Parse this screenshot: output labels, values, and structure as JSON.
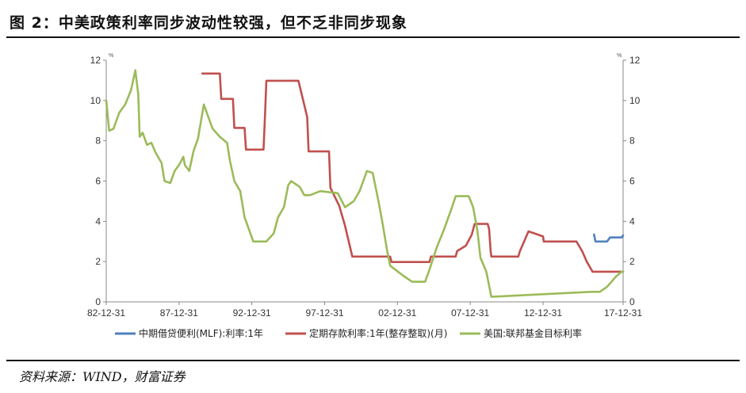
{
  "figure": {
    "title": "图 2：中美政策利率同步波动性较强，但不乏非同步现象",
    "source": "资料来源：WIND，财富证券"
  },
  "chart_data": {
    "type": "line",
    "title": "",
    "xlabel": "",
    "ylabel_left": "%",
    "ylabel_right": "%",
    "x_ticks": [
      "82-12-31",
      "87-12-31",
      "92-12-31",
      "97-12-31",
      "02-12-31",
      "07-12-31",
      "12-12-31",
      "17-12-31"
    ],
    "y_ticks": [
      "0",
      "2",
      "4",
      "6",
      "8",
      "10",
      "12"
    ],
    "ylim": [
      0,
      12
    ],
    "xlim": [
      1982.5,
      2018.0
    ],
    "legend_position": "bottom",
    "colors": {
      "mlf": "#4f81bd",
      "deposit": "#c0504d",
      "fed": "#9bbb59"
    },
    "series": [
      {
        "name": "中期借贷便利(MLF):利率:1年",
        "key": "mlf",
        "points": [
          [
            2016.0,
            3.35
          ],
          [
            2016.1,
            3.0
          ],
          [
            2016.9,
            3.0
          ],
          [
            2017.0,
            3.1
          ],
          [
            2017.1,
            3.2
          ],
          [
            2017.9,
            3.2
          ],
          [
            2018.0,
            3.3
          ]
        ]
      },
      {
        "name": "定期存款利率:1年(整存整取)(月)",
        "key": "deposit",
        "points": [
          [
            1989.1,
            11.34
          ],
          [
            1990.3,
            11.34
          ],
          [
            1990.4,
            10.08
          ],
          [
            1991.2,
            10.08
          ],
          [
            1991.3,
            8.64
          ],
          [
            1992.0,
            8.64
          ],
          [
            1992.1,
            7.56
          ],
          [
            1993.3,
            7.56
          ],
          [
            1993.4,
            9.18
          ],
          [
            1993.5,
            10.98
          ],
          [
            1995.7,
            10.98
          ],
          [
            1996.3,
            9.18
          ],
          [
            1996.4,
            7.47
          ],
          [
            1997.8,
            7.47
          ],
          [
            1997.9,
            5.67
          ],
          [
            1998.2,
            5.22
          ],
          [
            1998.5,
            4.77
          ],
          [
            1998.9,
            3.78
          ],
          [
            1999.4,
            2.25
          ],
          [
            2002.0,
            2.25
          ],
          [
            2002.1,
            1.98
          ],
          [
            2004.7,
            1.98
          ],
          [
            2004.8,
            2.25
          ],
          [
            2006.5,
            2.25
          ],
          [
            2006.6,
            2.52
          ],
          [
            2007.2,
            2.79
          ],
          [
            2007.6,
            3.33
          ],
          [
            2007.8,
            3.87
          ],
          [
            2008.7,
            3.87
          ],
          [
            2008.8,
            3.6
          ],
          [
            2008.9,
            2.52
          ],
          [
            2008.95,
            2.25
          ],
          [
            2010.8,
            2.25
          ],
          [
            2010.9,
            2.5
          ],
          [
            2011.2,
            3.0
          ],
          [
            2011.5,
            3.5
          ],
          [
            2012.5,
            3.25
          ],
          [
            2012.55,
            3.0
          ],
          [
            2014.8,
            3.0
          ],
          [
            2015.2,
            2.5
          ],
          [
            2015.5,
            2.0
          ],
          [
            2015.9,
            1.5
          ],
          [
            2018.0,
            1.5
          ]
        ]
      },
      {
        "name": "美国:联邦基金目标利率",
        "key": "fed",
        "points": [
          [
            1982.5,
            10.0
          ],
          [
            1982.7,
            8.5
          ],
          [
            1983.0,
            8.6
          ],
          [
            1983.4,
            9.4
          ],
          [
            1983.8,
            9.8
          ],
          [
            1984.2,
            10.5
          ],
          [
            1984.5,
            11.5
          ],
          [
            1984.7,
            10.3
          ],
          [
            1984.8,
            8.2
          ],
          [
            1985.0,
            8.4
          ],
          [
            1985.3,
            7.8
          ],
          [
            1985.6,
            7.9
          ],
          [
            1985.9,
            7.4
          ],
          [
            1986.3,
            6.9
          ],
          [
            1986.5,
            6.0
          ],
          [
            1986.9,
            5.9
          ],
          [
            1987.2,
            6.5
          ],
          [
            1987.5,
            6.8
          ],
          [
            1987.8,
            7.2
          ],
          [
            1987.9,
            6.8
          ],
          [
            1988.2,
            6.5
          ],
          [
            1988.5,
            7.5
          ],
          [
            1988.8,
            8.1
          ],
          [
            1989.2,
            9.8
          ],
          [
            1989.5,
            9.2
          ],
          [
            1989.8,
            8.6
          ],
          [
            1990.3,
            8.2
          ],
          [
            1990.8,
            7.9
          ],
          [
            1991.0,
            7.0
          ],
          [
            1991.3,
            6.0
          ],
          [
            1991.7,
            5.5
          ],
          [
            1992.0,
            4.2
          ],
          [
            1992.2,
            3.8
          ],
          [
            1992.6,
            3.0
          ],
          [
            1993.5,
            3.0
          ],
          [
            1994.0,
            3.4
          ],
          [
            1994.3,
            4.2
          ],
          [
            1994.7,
            4.7
          ],
          [
            1995.0,
            5.8
          ],
          [
            1995.2,
            6.0
          ],
          [
            1995.8,
            5.7
          ],
          [
            1996.1,
            5.3
          ],
          [
            1996.5,
            5.3
          ],
          [
            1997.2,
            5.5
          ],
          [
            1998.4,
            5.4
          ],
          [
            1998.9,
            4.7
          ],
          [
            1999.5,
            5.0
          ],
          [
            1999.9,
            5.5
          ],
          [
            2000.4,
            6.5
          ],
          [
            2000.8,
            6.4
          ],
          [
            2001.2,
            5.0
          ],
          [
            2001.5,
            3.8
          ],
          [
            2001.8,
            2.5
          ],
          [
            2002.0,
            1.8
          ],
          [
            2002.9,
            1.3
          ],
          [
            2003.5,
            1.0
          ],
          [
            2004.4,
            1.0
          ],
          [
            2004.7,
            1.6
          ],
          [
            2005.2,
            2.7
          ],
          [
            2005.7,
            3.6
          ],
          [
            2006.2,
            4.6
          ],
          [
            2006.5,
            5.25
          ],
          [
            2007.4,
            5.25
          ],
          [
            2007.7,
            4.7
          ],
          [
            2008.0,
            3.5
          ],
          [
            2008.2,
            2.2
          ],
          [
            2008.6,
            1.5
          ],
          [
            2008.95,
            0.25
          ],
          [
            2015.8,
            0.5
          ],
          [
            2016.4,
            0.5
          ],
          [
            2016.9,
            0.75
          ],
          [
            2017.2,
            1.0
          ],
          [
            2017.5,
            1.25
          ],
          [
            2017.9,
            1.5
          ],
          [
            2018.0,
            1.5
          ]
        ]
      }
    ]
  }
}
